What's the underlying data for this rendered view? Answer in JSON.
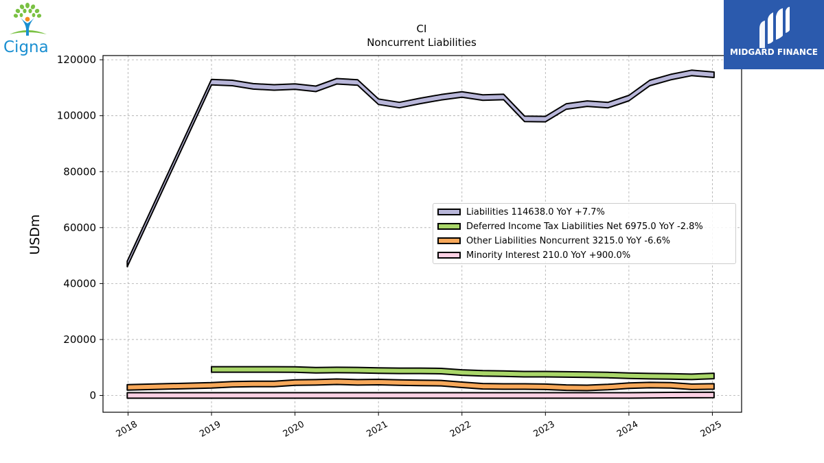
{
  "logos": {
    "left_brand": "Cigna",
    "right_brand": "MIDGARD FINANCE",
    "left_icon": "tree-person-icon",
    "right_icon": "midgard-m-icon"
  },
  "chart_data": {
    "type": "area",
    "title": "CI",
    "subtitle": "Noncurrent  Liabilities",
    "xlabel": "",
    "ylabel": "USDm",
    "xlim": [
      2017.7,
      2025.35
    ],
    "ylim": [
      -6000,
      121500
    ],
    "xticks": [
      2018,
      2019,
      2020,
      2021,
      2022,
      2023,
      2024,
      2025
    ],
    "xtick_labels": [
      "2018",
      "2019",
      "2020",
      "2021",
      "2022",
      "2023",
      "2024",
      "2025"
    ],
    "yticks": [
      0,
      20000,
      40000,
      60000,
      80000,
      100000,
      120000
    ],
    "ytick_labels": [
      "0",
      "20000",
      "40000",
      "60000",
      "80000",
      "100000",
      "120000"
    ],
    "grid": true,
    "legend_position": "center-right",
    "series": [
      {
        "name": "Liabilities",
        "legend": "Liabilities  114638.0 YoY +7.7%",
        "color": "#b8b6d9",
        "x": [
          2017.99,
          2019.0,
          2019.25,
          2019.5,
          2019.75,
          2020.0,
          2020.25,
          2020.5,
          2020.75,
          2021.0,
          2021.25,
          2021.5,
          2021.75,
          2022.0,
          2022.25,
          2022.5,
          2022.75,
          2023.0,
          2023.25,
          2023.5,
          2023.75,
          2024.0,
          2024.25,
          2024.5,
          2024.75,
          2025.02
        ],
        "y": [
          47000,
          112000,
          111700,
          110500,
          110100,
          110400,
          109600,
          112300,
          111900,
          105000,
          103800,
          105300,
          106600,
          107600,
          106500,
          106700,
          98900,
          98800,
          103300,
          104300,
          103800,
          106300,
          111700,
          113800,
          115300,
          114638
        ]
      },
      {
        "name": "Deferred Income Tax Liabilities Net",
        "legend": "Deferred Income Tax Liabilities Net  6975.0 YoY -2.8%",
        "color": "#a9d669",
        "x": [
          2019.0,
          2019.25,
          2019.5,
          2019.75,
          2020.0,
          2020.25,
          2020.5,
          2020.75,
          2021.0,
          2021.25,
          2021.5,
          2021.75,
          2022.0,
          2022.25,
          2022.5,
          2022.75,
          2023.0,
          2023.25,
          2023.5,
          2023.75,
          2024.0,
          2024.25,
          2024.5,
          2024.75,
          2025.02
        ],
        "y": [
          9300,
          9300,
          9300,
          9300,
          9250,
          9000,
          9100,
          9050,
          8900,
          8800,
          8800,
          8700,
          8200,
          7900,
          7800,
          7600,
          7600,
          7500,
          7400,
          7300,
          7050,
          6900,
          6800,
          6650,
          6975
        ]
      },
      {
        "name": "Other Liabilities Noncurrent",
        "legend": "Other Liabilities Noncurrent  3215.0 YoY -6.6%",
        "color": "#f7a85a",
        "x": [
          2017.99,
          2019.0,
          2019.25,
          2019.5,
          2019.75,
          2020.0,
          2020.25,
          2020.5,
          2020.75,
          2021.0,
          2021.25,
          2021.5,
          2021.75,
          2022.0,
          2022.25,
          2022.5,
          2022.75,
          2023.0,
          2023.25,
          2023.5,
          2023.75,
          2024.0,
          2024.25,
          2024.5,
          2024.75,
          2025.02
        ],
        "y": [
          2900,
          3600,
          4000,
          4100,
          4100,
          4600,
          4700,
          4900,
          4700,
          4800,
          4600,
          4500,
          4400,
          3800,
          3300,
          3200,
          3200,
          3100,
          2800,
          2700,
          3000,
          3500,
          3700,
          3600,
          3100,
          3215
        ]
      },
      {
        "name": "Minority Interest",
        "legend": "Minority Interest  210.0 YoY +900.0%",
        "color": "#fbd0e3",
        "x": [
          2017.99,
          2019.0,
          2019.25,
          2019.5,
          2019.75,
          2020.0,
          2020.25,
          2020.5,
          2020.75,
          2021.0,
          2021.25,
          2021.5,
          2021.75,
          2022.0,
          2022.25,
          2022.5,
          2022.75,
          2023.0,
          2023.25,
          2023.5,
          2023.75,
          2024.0,
          2024.25,
          2024.5,
          2024.75,
          2025.02
        ],
        "y": [
          0,
          0,
          0,
          0,
          0,
          0,
          0,
          0,
          0,
          0,
          0,
          0,
          0,
          0,
          0,
          0,
          0,
          0,
          0,
          0,
          0,
          0,
          50,
          120,
          150,
          210
        ]
      }
    ]
  }
}
